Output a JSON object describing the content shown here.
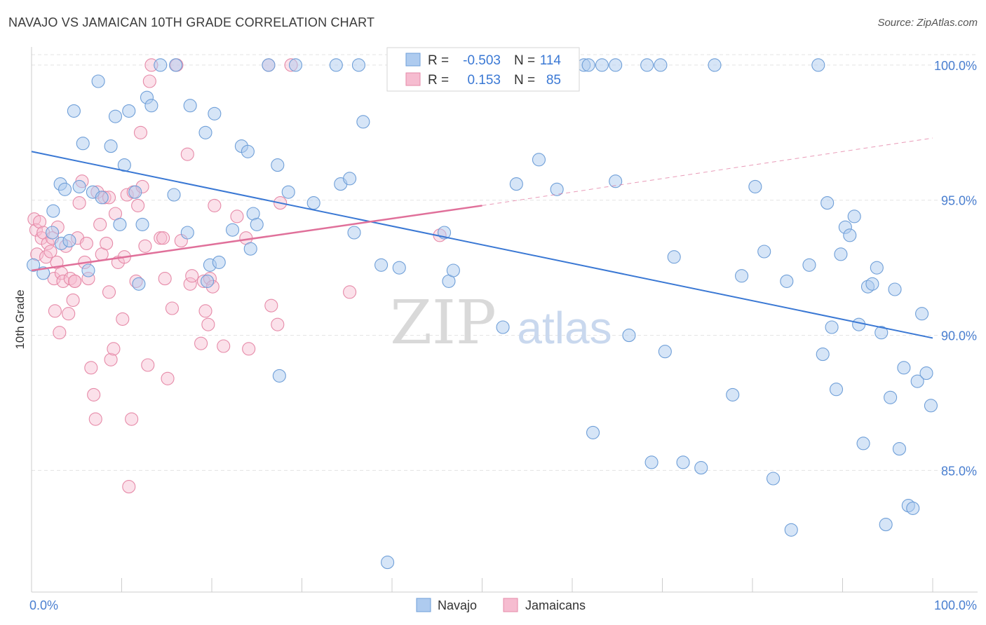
{
  "header": {
    "title": "NAVAJO VS JAMAICAN 10TH GRADE CORRELATION CHART",
    "source": "Source: ZipAtlas.com"
  },
  "watermark": {
    "zip": "ZIP",
    "atlas": "atlas"
  },
  "stats": {
    "navajo": {
      "r_label": "R =",
      "r_value": "-0.503",
      "n_label": "N =",
      "n_value": "114"
    },
    "jamaicans": {
      "r_label": "R =",
      "r_value": "0.153",
      "n_label": "N =",
      "n_value": "85"
    }
  },
  "legend": {
    "navajo": "Navajo",
    "jamaicans": "Jamaicans"
  },
  "colors": {
    "navajo_fill": "#aecbef",
    "navajo_stroke": "#6f9fd8",
    "navajo_line": "#3a78d4",
    "jamaicans_fill": "#f6bcd0",
    "jamaicans_stroke": "#e68aa8",
    "jamaicans_line": "#e0709a",
    "tick_label": "#4a7fd0",
    "grid": "#e3e3e3",
    "axis": "#cccccc"
  },
  "chart_data": {
    "type": "scatter",
    "title": "NAVAJO VS JAMAICAN 10TH GRADE CORRELATION CHART",
    "xlabel": "",
    "ylabel": "10th Grade",
    "xlim": [
      0,
      100
    ],
    "ylim": [
      80.5,
      100.8
    ],
    "x_tick_labels": [
      "0.0%",
      "100.0%"
    ],
    "y_ticks": [
      85,
      90,
      95,
      100
    ],
    "y_tick_labels": [
      "85.0%",
      "90.0%",
      "95.0%",
      "100.0%"
    ],
    "grid": true,
    "legend_position": "bottom-center",
    "series": [
      {
        "name": "Navajo",
        "r": -0.503,
        "n": 114,
        "trend": {
          "x": [
            0,
            100
          ],
          "y": [
            96.8,
            89.9
          ],
          "dashed_from": null
        },
        "points": [
          [
            0.2,
            92.6
          ],
          [
            1.3,
            92.3
          ],
          [
            2.3,
            93.8
          ],
          [
            2.4,
            94.6
          ],
          [
            3.3,
            93.4
          ],
          [
            3.2,
            95.6
          ],
          [
            3.7,
            95.4
          ],
          [
            4.2,
            93.5
          ],
          [
            4.7,
            98.3
          ],
          [
            5.3,
            95.5
          ],
          [
            5.7,
            97.1
          ],
          [
            6.3,
            92.4
          ],
          [
            6.8,
            95.3
          ],
          [
            7.4,
            99.4
          ],
          [
            7.8,
            95.1
          ],
          [
            8.8,
            97.0
          ],
          [
            9.3,
            98.1
          ],
          [
            9.8,
            94.1
          ],
          [
            10.3,
            96.3
          ],
          [
            10.8,
            98.3
          ],
          [
            11.5,
            95.3
          ],
          [
            11.9,
            91.9
          ],
          [
            12.3,
            94.1
          ],
          [
            12.8,
            98.8
          ],
          [
            13.3,
            98.5
          ],
          [
            14.3,
            100.0
          ],
          [
            16.0,
            100.0
          ],
          [
            15.8,
            95.2
          ],
          [
            17.3,
            93.8
          ],
          [
            17.6,
            98.5
          ],
          [
            19.3,
            97.5
          ],
          [
            19.5,
            92.0
          ],
          [
            19.8,
            92.6
          ],
          [
            20.3,
            98.2
          ],
          [
            20.8,
            92.7
          ],
          [
            22.3,
            93.9
          ],
          [
            23.3,
            97.0
          ],
          [
            24.0,
            96.8
          ],
          [
            24.3,
            93.2
          ],
          [
            24.6,
            94.5
          ],
          [
            25.0,
            94.1
          ],
          [
            26.3,
            100.0
          ],
          [
            27.3,
            96.3
          ],
          [
            27.5,
            88.5
          ],
          [
            28.5,
            95.3
          ],
          [
            29.3,
            100.0
          ],
          [
            31.3,
            94.9
          ],
          [
            33.8,
            100.0
          ],
          [
            34.3,
            95.6
          ],
          [
            35.3,
            95.8
          ],
          [
            35.8,
            93.8
          ],
          [
            36.3,
            100.0
          ],
          [
            36.8,
            97.9
          ],
          [
            38.8,
            92.6
          ],
          [
            40.8,
            92.5
          ],
          [
            45.8,
            93.8
          ],
          [
            46.3,
            92.0
          ],
          [
            46.8,
            92.4
          ],
          [
            47.3,
            100.0
          ],
          [
            52.3,
            90.3
          ],
          [
            53.8,
            100.0
          ],
          [
            53.8,
            95.6
          ],
          [
            56.3,
            96.5
          ],
          [
            58.3,
            95.4
          ],
          [
            61.3,
            100.0
          ],
          [
            61.8,
            100.0
          ],
          [
            62.3,
            86.4
          ],
          [
            63.3,
            100.0
          ],
          [
            64.8,
            100.0
          ],
          [
            64.8,
            95.7
          ],
          [
            66.3,
            90.0
          ],
          [
            68.3,
            100.0
          ],
          [
            68.8,
            85.3
          ],
          [
            69.8,
            100.0
          ],
          [
            70.3,
            89.4
          ],
          [
            71.3,
            92.9
          ],
          [
            72.3,
            85.3
          ],
          [
            74.3,
            85.1
          ],
          [
            75.8,
            100.0
          ],
          [
            77.8,
            87.8
          ],
          [
            78.8,
            92.2
          ],
          [
            80.3,
            95.5
          ],
          [
            81.3,
            93.1
          ],
          [
            82.3,
            84.7
          ],
          [
            83.8,
            92.0
          ],
          [
            84.3,
            82.8
          ],
          [
            86.3,
            92.6
          ],
          [
            87.3,
            100.0
          ],
          [
            87.8,
            89.3
          ],
          [
            88.3,
            94.9
          ],
          [
            88.8,
            90.3
          ],
          [
            89.3,
            88.0
          ],
          [
            89.8,
            93.0
          ],
          [
            90.3,
            94.0
          ],
          [
            90.8,
            93.7
          ],
          [
            91.3,
            94.4
          ],
          [
            91.8,
            90.4
          ],
          [
            92.3,
            86.0
          ],
          [
            92.8,
            91.8
          ],
          [
            93.3,
            91.9
          ],
          [
            93.8,
            92.5
          ],
          [
            94.3,
            90.1
          ],
          [
            94.8,
            83.0
          ],
          [
            95.3,
            87.7
          ],
          [
            95.8,
            91.7
          ],
          [
            96.3,
            85.8
          ],
          [
            96.8,
            88.8
          ],
          [
            97.3,
            83.7
          ],
          [
            97.8,
            83.6
          ],
          [
            98.3,
            88.3
          ],
          [
            98.8,
            90.8
          ],
          [
            99.3,
            88.6
          ],
          [
            99.8,
            87.4
          ],
          [
            39.5,
            81.6
          ]
        ]
      },
      {
        "name": "Jamaicans",
        "r": 0.153,
        "n": 85,
        "trend": {
          "x": [
            0,
            50
          ],
          "y": [
            92.4,
            94.8
          ],
          "dashed_x": [
            50,
            100
          ],
          "dashed_y": [
            94.8,
            97.3
          ]
        },
        "points": [
          [
            0.3,
            94.3
          ],
          [
            0.5,
            93.9
          ],
          [
            0.6,
            93.0
          ],
          [
            0.9,
            94.2
          ],
          [
            1.1,
            93.6
          ],
          [
            1.3,
            93.8
          ],
          [
            1.6,
            92.9
          ],
          [
            1.8,
            93.4
          ],
          [
            2.1,
            93.1
          ],
          [
            2.3,
            93.6
          ],
          [
            2.5,
            92.1
          ],
          [
            2.6,
            90.9
          ],
          [
            2.8,
            92.7
          ],
          [
            2.9,
            94.0
          ],
          [
            3.1,
            90.1
          ],
          [
            3.3,
            92.3
          ],
          [
            3.5,
            92.0
          ],
          [
            3.8,
            93.3
          ],
          [
            4.1,
            90.8
          ],
          [
            4.3,
            92.1
          ],
          [
            4.6,
            91.3
          ],
          [
            4.8,
            92.0
          ],
          [
            5.1,
            93.6
          ],
          [
            5.3,
            94.9
          ],
          [
            5.6,
            95.7
          ],
          [
            5.9,
            92.7
          ],
          [
            6.1,
            93.4
          ],
          [
            6.3,
            92.1
          ],
          [
            6.6,
            88.8
          ],
          [
            6.9,
            87.8
          ],
          [
            7.1,
            86.9
          ],
          [
            7.3,
            95.3
          ],
          [
            7.6,
            94.1
          ],
          [
            7.8,
            93.0
          ],
          [
            8.1,
            95.1
          ],
          [
            8.3,
            93.4
          ],
          [
            8.6,
            91.6
          ],
          [
            8.8,
            89.1
          ],
          [
            9.1,
            89.5
          ],
          [
            9.3,
            94.5
          ],
          [
            9.6,
            92.7
          ],
          [
            10.1,
            90.6
          ],
          [
            10.3,
            92.9
          ],
          [
            10.6,
            95.2
          ],
          [
            10.8,
            84.4
          ],
          [
            11.1,
            86.9
          ],
          [
            11.3,
            95.3
          ],
          [
            11.6,
            92.0
          ],
          [
            11.8,
            94.8
          ],
          [
            12.1,
            97.5
          ],
          [
            12.3,
            95.5
          ],
          [
            12.6,
            93.3
          ],
          [
            12.9,
            88.9
          ],
          [
            13.1,
            99.4
          ],
          [
            13.3,
            100.0
          ],
          [
            14.3,
            93.6
          ],
          [
            14.6,
            93.6
          ],
          [
            14.8,
            92.1
          ],
          [
            15.1,
            88.4
          ],
          [
            15.6,
            91.0
          ],
          [
            16.1,
            100.0
          ],
          [
            16.6,
            93.5
          ],
          [
            17.3,
            96.7
          ],
          [
            17.6,
            91.9
          ],
          [
            17.8,
            92.2
          ],
          [
            18.8,
            89.7
          ],
          [
            19.1,
            92.0
          ],
          [
            19.3,
            90.9
          ],
          [
            19.6,
            90.4
          ],
          [
            19.8,
            92.1
          ],
          [
            20.1,
            91.8
          ],
          [
            20.3,
            94.8
          ],
          [
            21.3,
            89.6
          ],
          [
            22.8,
            94.4
          ],
          [
            23.8,
            93.6
          ],
          [
            24.1,
            89.5
          ],
          [
            26.3,
            100.0
          ],
          [
            26.6,
            91.1
          ],
          [
            27.3,
            90.4
          ],
          [
            27.6,
            94.9
          ],
          [
            28.8,
            100.0
          ],
          [
            35.3,
            91.6
          ],
          [
            45.3,
            93.7
          ],
          [
            8.6,
            95.1
          ],
          [
            4.8,
            92.0
          ]
        ]
      }
    ]
  }
}
